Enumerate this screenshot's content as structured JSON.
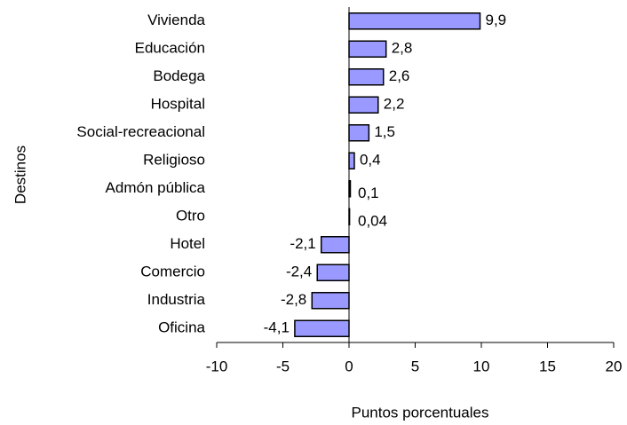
{
  "chart_data": {
    "type": "barh",
    "categories": [
      "Vivienda",
      "Educación",
      "Bodega",
      "Hospital",
      "Social-recreacional",
      "Religioso",
      "Admón pública",
      "Otro",
      "Hotel",
      "Comercio",
      "Industria",
      "Oficina"
    ],
    "values": [
      9.9,
      2.8,
      2.6,
      2.2,
      1.5,
      0.4,
      0.1,
      0.04,
      -2.1,
      -2.4,
      -2.8,
      -4.1
    ],
    "value_labels": [
      "9,9",
      "2,8",
      "2,6",
      "2,2",
      "1,5",
      "0,4",
      "0,1",
      "0,04",
      "-2,1",
      "-2,4",
      "-2,8",
      "-4,1"
    ],
    "color": "#9999ff",
    "xlim": [
      -10,
      20
    ],
    "xticks": [
      -10,
      -5,
      0,
      5,
      10,
      15,
      20
    ],
    "xlabel": "Puntos  porcentuales",
    "ylabel": "Destinos"
  }
}
